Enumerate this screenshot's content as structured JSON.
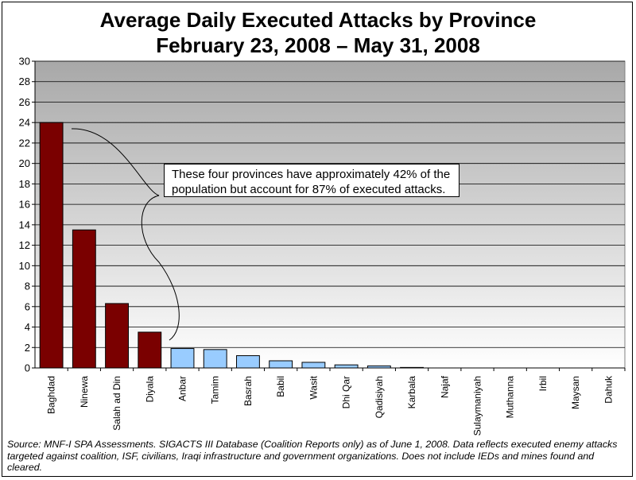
{
  "chart_data": {
    "type": "bar",
    "title": "Average Daily Executed Attacks by Province",
    "subtitle": "February 23, 2008 – May 31, 2008",
    "categories": [
      "Baghdad",
      "Ninewa",
      "Salah ad Din",
      "Diyala",
      "Anbar",
      "Tamim",
      "Basrah",
      "Babil",
      "Wasit",
      "Dhi Qar",
      "Qadisiyah",
      "Karbala",
      "Najaf",
      "Sulaymaniyah",
      "Muthanna",
      "Irbil",
      "Maysan",
      "Dahuk"
    ],
    "values": [
      24.0,
      13.5,
      6.3,
      3.5,
      1.9,
      1.8,
      1.2,
      0.7,
      0.55,
      0.3,
      0.2,
      0.05,
      0,
      0,
      0,
      0,
      0,
      0
    ],
    "highlight_count": 4,
    "highlight_color": "#7a0000",
    "other_color": "#99ccff",
    "ylim": [
      0,
      30
    ],
    "yticks": [
      0,
      2,
      4,
      6,
      8,
      10,
      12,
      14,
      16,
      18,
      20,
      22,
      24,
      26,
      28,
      30
    ],
    "grid": true,
    "xlabel": "",
    "ylabel": "",
    "annotation": "These four provinces have approximately 42% of the population but account for 87% of executed attacks."
  },
  "source": "Source:  MNF-I SPA Assessments.  SIGACTS III Database  (Coalition Reports only) as of June 1, 2008.  Data reflects executed enemy attacks targeted against coalition, ISF, civilians, Iraqi infrastructure and government organizations.  Does not include IEDs and mines found and cleared."
}
